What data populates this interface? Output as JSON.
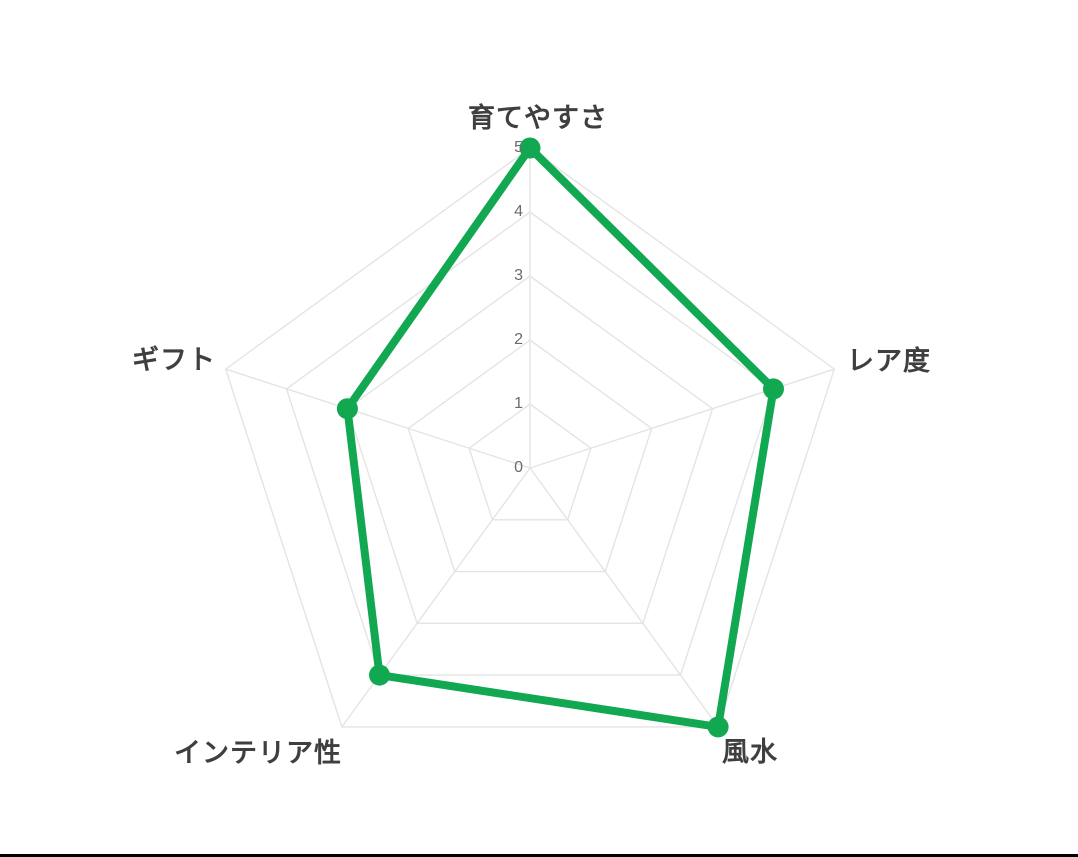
{
  "chart_data": {
    "type": "radar",
    "categories": [
      "育てやすさ",
      "レア度",
      "風水",
      "インテリア性",
      "ギフト"
    ],
    "values": [
      5,
      4,
      5,
      4,
      3
    ],
    "scale": {
      "min": 0,
      "max": 5,
      "step": 1,
      "tick_labels": [
        "0",
        "1",
        "2",
        "3",
        "4",
        "5"
      ]
    },
    "layout_hints": {
      "grid": "concentric pentagons with radial spokes",
      "legend": "none",
      "fill": "none"
    },
    "colors": {
      "line": "#12a852",
      "point": "#12a852",
      "grid": "#e4e4e4",
      "axis_label": "#3f3f3f",
      "tick_label": "#6b6b6b",
      "bottom_bar": "#000000"
    }
  }
}
